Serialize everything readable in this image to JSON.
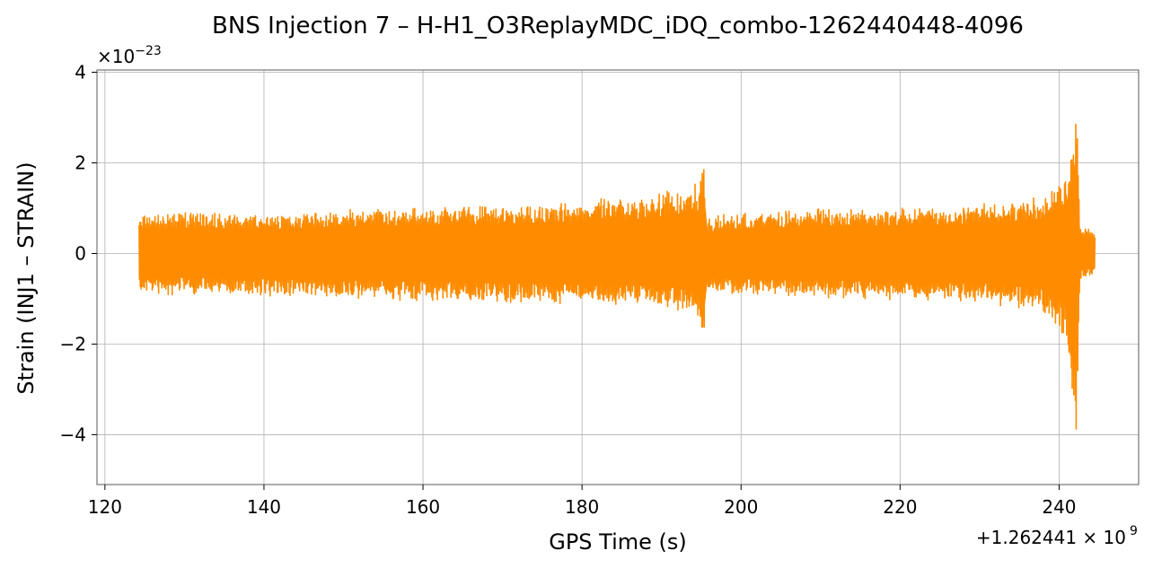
{
  "chart_data": {
    "type": "line",
    "title": "BNS Injection 7 – H-H1_O3ReplayMDC_iDQ_combo-1262440448-4096",
    "xlabel": "GPS Time (s)",
    "ylabel": "Strain (INJ1 – STRAIN)",
    "x_offset_text": "+1.262441 × 10",
    "x_offset_exp": "9",
    "y_scale_text": "×10",
    "y_scale_exp": "−23",
    "xlim": [
      119,
      250
    ],
    "ylim": [
      -5.1,
      4.05
    ],
    "x_ticks": [
      120,
      140,
      160,
      180,
      200,
      220,
      240
    ],
    "x_tick_labels": [
      "120",
      "140",
      "160",
      "180",
      "200",
      "220",
      "240"
    ],
    "y_ticks": [
      -4,
      -2,
      0,
      2,
      4
    ],
    "y_tick_labels": [
      "−4",
      "−2",
      "0",
      "2",
      "4"
    ],
    "grid": true,
    "line_color": "#ff8c00",
    "series": [
      {
        "x_range": [
          124.3,
          244.5
        ],
        "envelope": [
          [
            124.3,
            -0.95,
            0.85
          ],
          [
            130,
            -0.9,
            0.95
          ],
          [
            140,
            -0.95,
            0.9
          ],
          [
            150,
            -1.0,
            1.0
          ],
          [
            160,
            -1.05,
            1.05
          ],
          [
            170,
            -1.1,
            1.1
          ],
          [
            180,
            -1.15,
            1.2
          ],
          [
            188,
            -1.2,
            1.3
          ],
          [
            193,
            -1.3,
            1.5
          ],
          [
            194.8,
            -1.6,
            1.6
          ],
          [
            195.2,
            -2.6,
            2.7
          ],
          [
            195.6,
            -0.9,
            0.8
          ],
          [
            200,
            -0.95,
            0.95
          ],
          [
            210,
            -1.0,
            1.0
          ],
          [
            220,
            -1.05,
            1.05
          ],
          [
            230,
            -1.1,
            1.1
          ],
          [
            238,
            -1.3,
            1.3
          ],
          [
            241,
            -2.0,
            1.9
          ],
          [
            242.2,
            -4.7,
            3.65
          ],
          [
            242.6,
            -0.6,
            0.6
          ],
          [
            244.5,
            -0.55,
            0.55
          ]
        ]
      }
    ]
  }
}
